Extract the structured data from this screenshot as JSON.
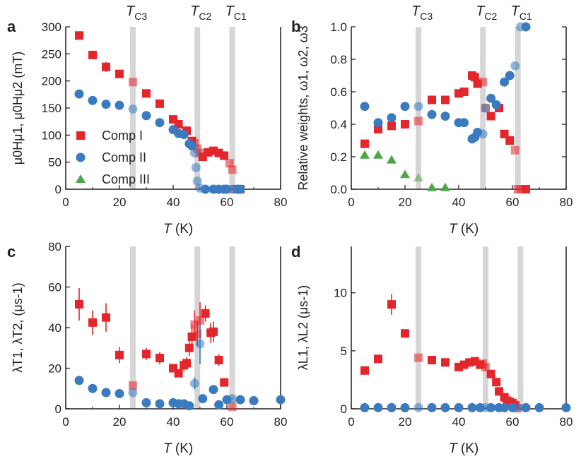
{
  "colors": {
    "red": "#e3262b",
    "blue": "#3a7bbf",
    "green": "#4ea64a",
    "band": "#d6d6d6",
    "axis": "#231f20"
  },
  "chart_data": [
    {
      "panel": "a",
      "type": "scatter",
      "xlabel": {
        "main": "T",
        "unit": " (K)"
      },
      "ylabel": "μ0Hμ1, μ0Hμ2 (mT)",
      "xlim": [
        0,
        80
      ],
      "ylim": [
        0,
        300
      ],
      "xticks": [
        "0",
        "20",
        "40",
        "60",
        "80"
      ],
      "yticks": [
        "0",
        "50",
        "100",
        "150",
        "200",
        "250",
        "300"
      ],
      "transition_temps": [
        {
          "label": "T",
          "sub": "C3",
          "x": 25
        },
        {
          "label": "T",
          "sub": "C2",
          "x": 49
        },
        {
          "label": "T",
          "sub": "C1",
          "x": 62
        }
      ],
      "legend": {
        "position": "center-left",
        "entries": [
          "Comp I",
          "Comp II",
          "Comp III"
        ]
      },
      "series": [
        {
          "name": "Comp I",
          "marker": "square",
          "color": "red",
          "points": [
            [
              5,
              284
            ],
            [
              10,
              248
            ],
            [
              15,
              226
            ],
            [
              20,
              213
            ],
            [
              25,
              198
            ],
            [
              30,
              177
            ],
            [
              35,
              158
            ],
            [
              40,
              129
            ],
            [
              42,
              120
            ],
            [
              45,
              108
            ],
            [
              47,
              89
            ],
            [
              48,
              85
            ],
            [
              49,
              75
            ],
            [
              50,
              67
            ],
            [
              51,
              60
            ],
            [
              53,
              68
            ],
            [
              55,
              71
            ],
            [
              57,
              67
            ],
            [
              59,
              62
            ],
            [
              61,
              48
            ],
            [
              62,
              36
            ],
            [
              63,
              0
            ],
            [
              64,
              0
            ],
            [
              65,
              0
            ]
          ],
          "yerr": [
            0,
            0,
            9,
            0,
            0,
            0,
            0,
            0,
            0,
            0,
            0,
            0,
            0,
            0,
            0,
            0,
            0,
            0,
            0,
            0,
            0,
            0,
            0,
            0
          ]
        },
        {
          "name": "Comp II",
          "marker": "circle",
          "color": "blue",
          "points": [
            [
              5,
              176
            ],
            [
              10,
              164
            ],
            [
              15,
              157
            ],
            [
              20,
              155
            ],
            [
              25,
              148
            ],
            [
              30,
              136
            ],
            [
              35,
              123
            ],
            [
              40,
              110
            ],
            [
              42,
              103
            ],
            [
              44,
              101
            ],
            [
              46,
              84
            ],
            [
              47,
              80
            ],
            [
              48,
              67
            ],
            [
              48.5,
              40
            ],
            [
              49,
              15
            ],
            [
              50,
              2
            ],
            [
              52,
              0
            ],
            [
              55,
              0
            ],
            [
              57,
              0
            ],
            [
              59,
              0
            ],
            [
              60,
              0
            ],
            [
              62,
              0
            ],
            [
              64,
              0
            ],
            [
              65,
              0
            ]
          ]
        },
        {
          "name": "Comp III",
          "marker": "triangle",
          "color": "green",
          "points": []
        }
      ]
    },
    {
      "panel": "b",
      "type": "scatter",
      "xlabel": {
        "main": "T",
        "unit": " (K)"
      },
      "ylabel": "Relative weights, ω1, ω2, ω3",
      "xlim": [
        0,
        80
      ],
      "ylim": [
        0,
        1.0
      ],
      "xticks": [
        "0",
        "20",
        "40",
        "60",
        "80"
      ],
      "yticks": [
        "0.0",
        "0.2",
        "0.4",
        "0.6",
        "0.8",
        "1.0"
      ],
      "transition_temps": [
        {
          "label": "T",
          "sub": "C3",
          "x": 25
        },
        {
          "label": "T",
          "sub": "C2",
          "x": 49
        },
        {
          "label": "T",
          "sub": "C1",
          "x": 62
        }
      ],
      "series": [
        {
          "name": "ω1",
          "marker": "square",
          "color": "red",
          "points": [
            [
              5,
              0.28
            ],
            [
              10,
              0.37
            ],
            [
              15,
              0.39
            ],
            [
              20,
              0.4
            ],
            [
              25,
              0.42
            ],
            [
              30,
              0.55
            ],
            [
              35,
              0.55
            ],
            [
              40,
              0.59
            ],
            [
              42,
              0.6
            ],
            [
              45,
              0.7
            ],
            [
              46,
              0.69
            ],
            [
              47,
              0.65
            ],
            [
              49,
              0.66
            ],
            [
              50,
              0.5
            ],
            [
              52,
              0.45
            ],
            [
              55,
              0.5
            ],
            [
              57,
              0.34
            ],
            [
              59,
              0.3
            ],
            [
              61,
              0.24
            ],
            [
              62,
              0
            ],
            [
              63,
              0
            ],
            [
              65,
              0
            ]
          ]
        },
        {
          "name": "ω2",
          "marker": "circle",
          "color": "blue",
          "points": [
            [
              5,
              0.51
            ],
            [
              10,
              0.41
            ],
            [
              15,
              0.44
            ],
            [
              20,
              0.51
            ],
            [
              25,
              0.51
            ],
            [
              30,
              0.46
            ],
            [
              35,
              0.45
            ],
            [
              40,
              0.41
            ],
            [
              42,
              0.41
            ],
            [
              45,
              0.31
            ],
            [
              46,
              0.32
            ],
            [
              47,
              0.35
            ],
            [
              49,
              0.34
            ],
            [
              50,
              0.5
            ],
            [
              52,
              0.56
            ],
            [
              54,
              0.52
            ],
            [
              57,
              0.66
            ],
            [
              59,
              0.7
            ],
            [
              61,
              0.76
            ],
            [
              63,
              1.0
            ],
            [
              65,
              1.0
            ]
          ]
        },
        {
          "name": "ω3",
          "marker": "triangle",
          "color": "green",
          "points": [
            [
              5,
              0.21
            ],
            [
              10,
              0.21
            ],
            [
              15,
              0.18
            ],
            [
              20,
              0.09
            ],
            [
              25,
              0.07
            ],
            [
              30,
              0.01
            ],
            [
              35,
              0.01
            ]
          ]
        }
      ]
    },
    {
      "panel": "c",
      "type": "scatter",
      "xlabel": {
        "main": "T",
        "unit": " (K)"
      },
      "ylabel": "λT1, λT2, (μs-1)",
      "xlim": [
        0,
        80
      ],
      "ylim": [
        0,
        80
      ],
      "xticks": [
        "0",
        "20",
        "40",
        "60",
        "80"
      ],
      "yticks": [
        "0",
        "20",
        "40",
        "60",
        "80"
      ],
      "transition_temps": [
        {
          "x": 25
        },
        {
          "x": 49
        },
        {
          "x": 62
        }
      ],
      "series": [
        {
          "name": "Comp I",
          "marker": "square",
          "color": "red",
          "points": [
            [
              5,
              51.5
            ],
            [
              10,
              42.5
            ],
            [
              15,
              45
            ],
            [
              20,
              26.5
            ],
            [
              25,
              11.5
            ],
            [
              30,
              27
            ],
            [
              35,
              25
            ],
            [
              40,
              20
            ],
            [
              42,
              17.5
            ],
            [
              44,
              21.5
            ],
            [
              45,
              22.5
            ],
            [
              46,
              30
            ],
            [
              47,
              35.5
            ],
            [
              48,
              41.5
            ],
            [
              49,
              37
            ],
            [
              50,
              43.5
            ],
            [
              52,
              47
            ],
            [
              54,
              37.5
            ],
            [
              55,
              38
            ],
            [
              57,
              24
            ],
            [
              59,
              13
            ],
            [
              62,
              1
            ]
          ],
          "yerr": [
            8,
            6,
            7,
            4,
            0,
            3,
            3,
            2,
            2,
            3,
            3,
            4,
            6,
            7,
            6,
            9,
            4,
            5,
            5,
            3,
            2,
            0
          ]
        },
        {
          "name": "Comp II",
          "marker": "circle",
          "color": "blue",
          "points": [
            [
              5,
              14
            ],
            [
              10,
              10
            ],
            [
              15,
              8
            ],
            [
              20,
              7.5
            ],
            [
              25,
              8
            ],
            [
              30,
              3
            ],
            [
              35,
              2.5
            ],
            [
              40,
              3
            ],
            [
              42,
              2.5
            ],
            [
              44,
              2.5
            ],
            [
              46,
              1.5
            ],
            [
              48,
              12.5
            ],
            [
              50,
              32
            ],
            [
              51,
              5
            ],
            [
              55,
              9.5
            ],
            [
              57,
              2
            ],
            [
              60,
              4.5
            ],
            [
              62,
              5
            ],
            [
              65,
              4.5
            ],
            [
              70,
              4
            ],
            [
              80,
              4.5
            ]
          ],
          "yerr": [
            2,
            1.5,
            1,
            1,
            0,
            0.5,
            0.5,
            0.5,
            0.5,
            0.5,
            0.5,
            3,
            10,
            1,
            1.5,
            0.5,
            0.5,
            0.5,
            0.5,
            0.5,
            0.5
          ]
        }
      ]
    },
    {
      "panel": "d",
      "type": "scatter",
      "xlabel": {
        "main": "T",
        "unit": " (K)"
      },
      "ylabel": "λL1, λL2 (μs-1)",
      "xlim": [
        0,
        80
      ],
      "ylim": [
        0,
        14
      ],
      "xticks": [
        "0",
        "20",
        "40",
        "60",
        "80"
      ],
      "yticks": [
        "0",
        "5",
        "10"
      ],
      "transition_temps": [
        {
          "x": 25
        },
        {
          "x": 50
        },
        {
          "x": 63
        }
      ],
      "series": [
        {
          "name": "Comp I",
          "marker": "square",
          "color": "red",
          "points": [
            [
              5,
              3.3
            ],
            [
              10,
              4.3
            ],
            [
              15,
              9.0
            ],
            [
              20,
              6.5
            ],
            [
              25,
              4.4
            ],
            [
              30,
              4.2
            ],
            [
              35,
              4.0
            ],
            [
              40,
              3.6
            ],
            [
              42,
              3.8
            ],
            [
              44,
              4.0
            ],
            [
              46,
              4.1
            ],
            [
              48,
              3.8
            ],
            [
              49,
              3.9
            ],
            [
              50,
              3.6
            ],
            [
              52,
              3.0
            ],
            [
              54,
              2.3
            ],
            [
              55,
              1.5
            ],
            [
              57,
              1.0
            ],
            [
              58,
              0.7
            ],
            [
              59,
              0.6
            ],
            [
              60,
              0.5
            ],
            [
              61,
              0.3
            ],
            [
              62,
              0.05
            ]
          ],
          "yerr": [
            0.3,
            0.3,
            0.9,
            0.3,
            0,
            0.2,
            0.2,
            0.2,
            0.2,
            0.2,
            0.3,
            0.3,
            0.3,
            0.3,
            0.3,
            0.3,
            0.3,
            0.2,
            0.2,
            0.2,
            0.2,
            0.2,
            0
          ]
        },
        {
          "name": "Comp II",
          "marker": "circle",
          "color": "blue",
          "points": [
            [
              5,
              0.1
            ],
            [
              10,
              0.1
            ],
            [
              15,
              0.1
            ],
            [
              20,
              0.1
            ],
            [
              25,
              0.1
            ],
            [
              30,
              0.1
            ],
            [
              35,
              0.1
            ],
            [
              40,
              0.1
            ],
            [
              45,
              0.1
            ],
            [
              48,
              0.1
            ],
            [
              50,
              0.1
            ],
            [
              52,
              0.1
            ],
            [
              55,
              0.1
            ],
            [
              57,
              0.1
            ],
            [
              60,
              0.1
            ],
            [
              62,
              0.1
            ],
            [
              65,
              0.1
            ],
            [
              70,
              0.1
            ],
            [
              80,
              0.1
            ]
          ]
        }
      ]
    }
  ]
}
